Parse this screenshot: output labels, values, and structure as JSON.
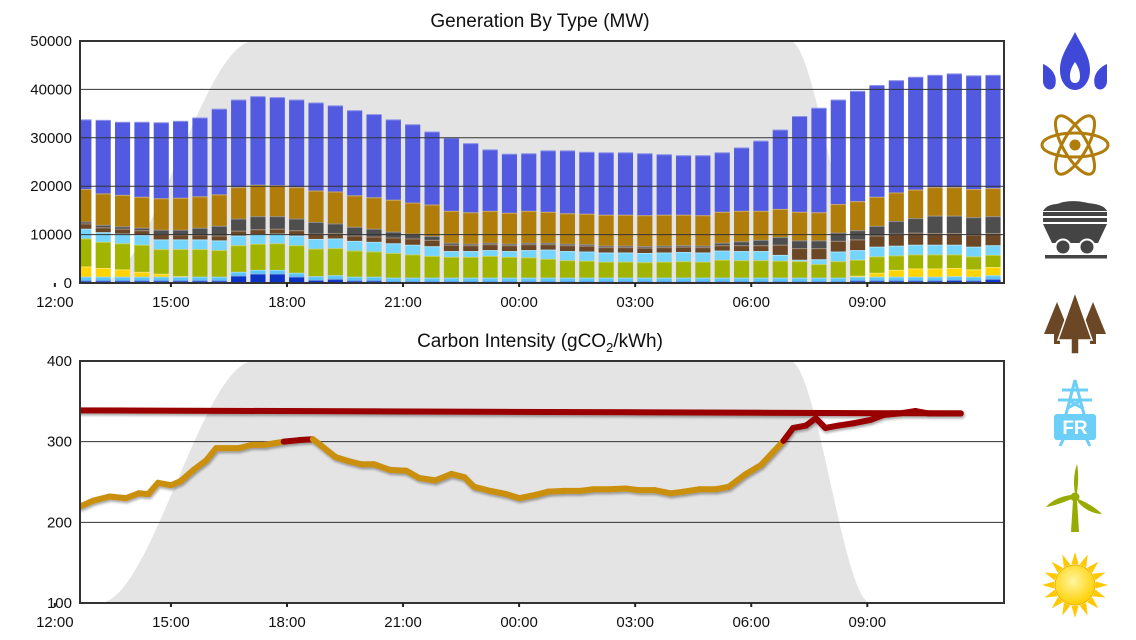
{
  "chart_data": [
    {
      "type": "bar",
      "stacked": true,
      "title": "Generation By Type (MW)",
      "x_range": [
        "12:39",
        "12:32"
      ],
      "x_ticks": [
        "15:00",
        "18:00",
        "21:00",
        "00:00",
        "03:00",
        "06:00",
        "09:00",
        "12:00"
      ],
      "ylim": [
        0,
        50000
      ],
      "y_ticks": [
        "0",
        "10000",
        "20000",
        "30000",
        "40000",
        "50000"
      ],
      "grid": true,
      "bar_interval_minutes": 30,
      "x_start": "12:45",
      "series": [
        {
          "icon": "hydro",
          "color": "#0a32c4",
          "values": [
            0.5,
            0.5,
            0.5,
            0.5,
            0.5,
            0.5,
            0.5,
            0.5,
            1.5,
            1.9,
            1.9,
            1.3,
            0.6,
            0.8,
            0.5,
            0.5,
            0.3,
            0.3,
            0.3,
            0.3,
            0.3,
            0.3,
            0.3,
            0.3,
            0.3,
            0.3,
            0.3,
            0.3,
            0.3,
            0.3,
            0.3,
            0.3,
            0.3,
            0.3,
            0.3,
            0.3,
            0.3,
            0.3,
            0.3,
            0.3,
            0.5,
            0.5,
            0.5,
            0.5,
            0.5,
            0.6,
            0.5,
            0.8,
            1.0
          ]
        },
        {
          "icon": "pumped-storage",
          "color": "#5cc4f7",
          "values": [
            0.8,
            0.8,
            0.8,
            0.8,
            0.8,
            0.8,
            0.8,
            0.8,
            0.8,
            0.8,
            0.8,
            0.8,
            0.8,
            0.8,
            0.8,
            0.8,
            0.8,
            0.8,
            0.8,
            0.8,
            0.8,
            0.8,
            0.8,
            0.8,
            0.8,
            0.8,
            0.8,
            0.8,
            0.8,
            0.8,
            0.8,
            0.8,
            0.8,
            0.8,
            0.8,
            0.8,
            0.8,
            0.8,
            0.8,
            0.8,
            0.8,
            0.8,
            0.8,
            0.8,
            0.8,
            0.8,
            0.8,
            0.8,
            0.8
          ]
        },
        {
          "icon": "solar",
          "color": "#ffd400",
          "values": [
            2.1,
            1.8,
            1.5,
            1.0,
            0.6,
            0.1,
            0,
            0,
            0,
            0,
            0,
            0,
            0,
            0,
            0,
            0,
            0,
            0,
            0,
            0,
            0,
            0,
            0,
            0,
            0,
            0,
            0,
            0,
            0,
            0,
            0,
            0,
            0,
            0,
            0,
            0,
            0,
            0,
            0,
            0,
            0.2,
            0.8,
            1.4,
            1.7,
            1.7,
            1.7,
            1.5,
            1.7,
            1.7
          ]
        },
        {
          "icon": "wind",
          "color": "#a1b500",
          "values": [
            5.8,
            5.4,
            5.4,
            5.6,
            5.1,
            5.6,
            5.7,
            5.5,
            5.5,
            5.4,
            5.5,
            5.7,
            5.7,
            5.6,
            5.4,
            5.2,
            5.1,
            4.8,
            4.5,
            4.3,
            4.3,
            4.5,
            4.3,
            4.2,
            3.9,
            3.6,
            3.5,
            3.3,
            3.3,
            3.2,
            3.3,
            3.4,
            3.3,
            3.7,
            3.6,
            3.6,
            3.5,
            3.4,
            2.8,
            3.4,
            3.3,
            3.4,
            3.0,
            2.9,
            2.9,
            2.8,
            2.7,
            2.5,
            2.2
          ]
        },
        {
          "icon": "imports-fr",
          "color": "#76d5fe",
          "values": [
            2.0,
            2.0,
            2.0,
            2.0,
            2.0,
            2.0,
            2.0,
            2.0,
            2.0,
            2.0,
            2.0,
            2.0,
            2.0,
            2.0,
            2.0,
            2.0,
            2.0,
            2.0,
            2.0,
            1.2,
            1.2,
            1.2,
            1.2,
            1.5,
            1.9,
            1.9,
            1.9,
            1.9,
            1.9,
            1.9,
            1.9,
            1.9,
            1.9,
            1.9,
            1.9,
            1.9,
            1.2,
            0.3,
            1.0,
            2.0,
            2.0,
            2.0,
            2.0,
            2.0,
            2.0,
            2.0,
            2.0,
            2.0,
            2.0
          ]
        },
        {
          "icon": "biomass",
          "color": "#6b4726",
          "values": [
            1.1,
            1.0,
            1.0,
            1.0,
            1.1,
            1.0,
            1.0,
            1.0,
            1.0,
            1.0,
            1.0,
            1.1,
            1.1,
            1.1,
            1.1,
            1.1,
            1.2,
            1.3,
            1.3,
            1.3,
            1.2,
            1.2,
            1.2,
            1.2,
            1.1,
            1.2,
            1.2,
            1.1,
            1.1,
            1.1,
            1.1,
            1.1,
            1.1,
            1.1,
            1.2,
            1.2,
            2.1,
            2.4,
            2.3,
            2.2,
            2.2,
            2.3,
            2.5,
            2.5,
            2.4,
            2.4,
            2.5,
            2.5,
            2.5
          ]
        },
        {
          "icon": "coal",
          "color": "#4e4e4e",
          "values": [
            0.4,
            0.5,
            0.5,
            0.5,
            0.9,
            1.0,
            1.4,
            2.0,
            2.5,
            2.7,
            2.6,
            2.4,
            2.4,
            2.0,
            1.8,
            1.6,
            1.2,
            1.0,
            0.8,
            0.4,
            0.3,
            0.3,
            0.3,
            0.3,
            0.3,
            0.3,
            0.3,
            0.3,
            0.3,
            0.3,
            0.3,
            0.3,
            0.3,
            0.5,
            0.8,
            1.1,
            1.6,
            1.6,
            1.6,
            1.7,
            1.9,
            2.0,
            2.6,
            3.0,
            3.6,
            3.6,
            3.6,
            3.5,
            3.6
          ]
        },
        {
          "icon": "nuclear",
          "color": "#b07c0a",
          "values": [
            6.7,
            6.5,
            6.5,
            6.4,
            6.5,
            6.6,
            6.5,
            6.5,
            6.5,
            6.5,
            6.4,
            6.5,
            6.5,
            6.6,
            6.5,
            6.5,
            6.6,
            6.4,
            6.5,
            6.6,
            6.5,
            6.6,
            6.4,
            6.6,
            6.4,
            6.3,
            6.3,
            6.4,
            6.4,
            6.4,
            6.4,
            6.3,
            6.3,
            6.4,
            6.3,
            6.0,
            5.8,
            5.9,
            5.8,
            5.9,
            6.0,
            6.0,
            5.9,
            5.9,
            5.9,
            5.9,
            5.8,
            5.8,
            5.8
          ]
        },
        {
          "icon": "gas",
          "color": "#525bdf",
          "values": [
            14.4,
            15.2,
            15.1,
            15.5,
            15.7,
            15.9,
            16.3,
            17.7,
            18.1,
            18.3,
            18.2,
            18.1,
            18.2,
            17.8,
            17.6,
            17.2,
            16.6,
            16.2,
            15.1,
            15.1,
            14.3,
            12.7,
            12.2,
            11.9,
            12.7,
            13.0,
            12.8,
            12.9,
            12.9,
            12.8,
            12.5,
            12.3,
            12.4,
            12.3,
            13.1,
            14.5,
            16.4,
            19.8,
            21.6,
            21.6,
            22.8,
            23.1,
            23.2,
            23.3,
            23.2,
            23.5,
            23.5,
            23.4,
            23.5
          ]
        }
      ],
      "value_unit_multiplier": 1000
    },
    {
      "type": "line",
      "title_parts": [
        "Carbon Intensity (gCO",
        "2",
        "/kWh)"
      ],
      "x_range": [
        "12:39",
        "12:32"
      ],
      "x_ticks": [
        "15:00",
        "18:00",
        "21:00",
        "00:00",
        "03:00",
        "06:00",
        "09:00",
        "12:00"
      ],
      "ylim": [
        100,
        400
      ],
      "y_ticks": [
        "100",
        "200",
        "300",
        "400"
      ],
      "grid": true,
      "high_threshold": 300,
      "colors": {
        "normal": "#c98f0b",
        "high": "#990000"
      },
      "x": [
        "12:40",
        "13:00",
        "13:25",
        "13:50",
        "14:10",
        "14:25",
        "14:40",
        "15:00",
        "15:15",
        "15:35",
        "15:55",
        "16:10",
        "16:25",
        "16:45",
        "17:05",
        "17:25",
        "17:55",
        "18:20",
        "18:40",
        "18:50",
        "19:15",
        "19:35",
        "19:55",
        "20:15",
        "20:40",
        "21:05",
        "21:25",
        "21:50",
        "22:15",
        "22:35",
        "22:50",
        "23:15",
        "23:40",
        "00:00",
        "00:25",
        "00:45",
        "01:10",
        "01:35",
        "01:55",
        "02:20",
        "02:45",
        "03:05",
        "03:30",
        "03:55",
        "04:15",
        "04:40",
        "05:05",
        "05:25",
        "05:50",
        "06:15",
        "06:35",
        "06:50",
        "07:05",
        "07:25",
        "07:40",
        "07:55",
        "08:15",
        "08:40",
        "09:05",
        "09:25",
        "09:50",
        "10:15",
        "10:35",
        "11:00",
        "11:25",
        "11:40",
        "12:00",
        "12:30"
      ],
      "y": [
        220,
        227,
        232,
        230,
        236,
        235,
        249,
        246,
        251,
        265,
        277,
        292,
        292,
        292,
        296,
        296,
        300,
        302,
        303,
        297,
        281,
        276,
        272,
        272,
        265,
        264,
        255,
        252,
        260,
        256,
        244,
        239,
        235,
        230,
        234,
        238,
        239,
        239,
        241,
        241,
        242,
        240,
        240,
        236,
        238,
        241,
        241,
        244,
        259,
        271,
        288,
        301,
        317,
        320,
        329,
        317,
        320,
        323,
        327,
        333,
        335,
        338,
        335,
        335,
        335,
        339,
        338,
        342
      ]
    }
  ],
  "legend_icons": [
    {
      "icon": "gas",
      "color": "#4048d8"
    },
    {
      "icon": "nuclear",
      "color": "#b07c0a"
    },
    {
      "icon": "coal",
      "color": "#444444"
    },
    {
      "icon": "biomass",
      "color": "#6b4726"
    },
    {
      "icon": "imports-fr",
      "color": "#6ccff8",
      "label": "FR"
    },
    {
      "icon": "wind",
      "color": "#98ab00"
    },
    {
      "icon": "solar",
      "color": "#ffd400"
    }
  ],
  "night_shading_color": "#e4e4e4"
}
